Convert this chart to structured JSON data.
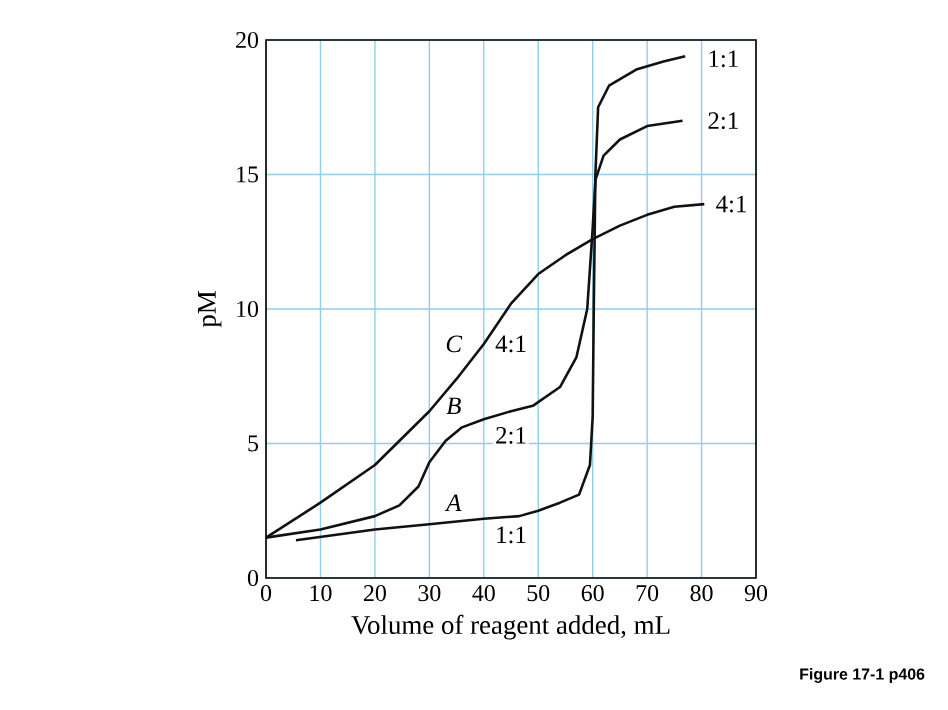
{
  "chart_data": {
    "type": "line",
    "xlabel": "Volume of reagent added, mL",
    "ylabel": "pM",
    "xlim": [
      0,
      90
    ],
    "ylim": [
      0,
      20
    ],
    "xticks": [
      0,
      10,
      20,
      30,
      40,
      50,
      60,
      70,
      80,
      90
    ],
    "yticks": [
      0,
      5,
      10,
      15,
      20
    ],
    "grid": true,
    "series": [
      {
        "color": "#111111",
        "x": [
          5.5,
          20,
          30,
          40,
          46.5,
          50,
          54,
          57.5,
          59.5,
          60,
          60.2,
          60.5,
          61,
          63,
          68,
          73,
          77
        ],
        "values": [
          1.4,
          1.8,
          2.0,
          2.2,
          2.3,
          2.5,
          2.8,
          3.1,
          4.2,
          6,
          10,
          15,
          17.5,
          18.3,
          18.9,
          19.2,
          19.4
        ]
      },
      {
        "color": "#111111",
        "x": [
          0,
          10,
          20,
          24.5,
          28,
          30,
          33,
          36,
          40,
          45,
          49,
          54,
          57,
          59,
          60,
          60.5,
          62,
          65,
          70,
          76.5
        ],
        "values": [
          1.5,
          1.8,
          2.3,
          2.7,
          3.4,
          4.3,
          5.1,
          5.6,
          5.9,
          6.2,
          6.4,
          7.1,
          8.2,
          10,
          13,
          14.8,
          15.7,
          16.3,
          16.8,
          17.0
        ]
      },
      {
        "color": "#111111",
        "x": [
          0,
          10,
          20,
          30,
          35,
          40,
          45,
          50,
          55,
          60,
          65,
          70,
          75,
          80.5
        ],
        "values": [
          1.5,
          2.8,
          4.2,
          6.2,
          7.4,
          8.7,
          10.2,
          11.3,
          12.0,
          12.6,
          13.1,
          13.5,
          13.8,
          13.9
        ]
      }
    ],
    "annotations": [
      {
        "text": "*C*",
        "x": 34.5,
        "y": 8.7
      },
      {
        "text": "4:1",
        "x": 45,
        "y": 8.7
      },
      {
        "text": "*B*",
        "x": 34.5,
        "y": 6.4
      },
      {
        "text": "2:1",
        "x": 45,
        "y": 5.3
      },
      {
        "text": "*A*",
        "x": 34.5,
        "y": 2.8
      },
      {
        "text": "1:1",
        "x": 45,
        "y": 1.6
      },
      {
        "text": "1:1",
        "x": 84,
        "y": 19.3
      },
      {
        "text": "2:1",
        "x": 84,
        "y": 17.0
      },
      {
        "text": "4:1",
        "x": 85.5,
        "y": 13.9
      },
      "Figure 17-1 p406"
    ]
  }
}
